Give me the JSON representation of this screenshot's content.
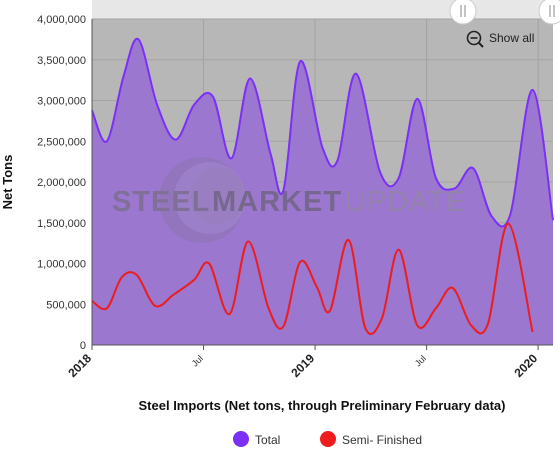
{
  "chart_data": {
    "type": "area",
    "ylabel": "Net Tons",
    "xlabel": "Steel Imports (Net tons, through Preliminary February data)",
    "y_ticks": [
      "0",
      "500,000",
      "1,000,000",
      "1,500,000",
      "2,000,000",
      "2,500,000",
      "3,000,000",
      "3,500,000",
      "4,000,000"
    ],
    "ylim": [
      0,
      4000000
    ],
    "x_ticks": [
      {
        "label": "2018",
        "month": 0,
        "major": true
      },
      {
        "label": "Jul",
        "month": 6,
        "major": false
      },
      {
        "label": "2019",
        "month": 12,
        "major": true
      },
      {
        "label": "Jul",
        "month": 18,
        "major": false
      },
      {
        "label": "2020",
        "month": 24,
        "major": true
      }
    ],
    "grid": true,
    "legend_position": "bottom-center",
    "series": [
      {
        "name": "Total",
        "color": "#7b2ff7",
        "fill": "#9b77cf",
        "points": [
          [
            0,
            2880000
          ],
          [
            0.8,
            2500000
          ],
          [
            1.7,
            3300000
          ],
          [
            2.5,
            3750000
          ],
          [
            3.5,
            2950000
          ],
          [
            4.5,
            2520000
          ],
          [
            5.5,
            2950000
          ],
          [
            6.5,
            3050000
          ],
          [
            7.5,
            2290000
          ],
          [
            8.5,
            3270000
          ],
          [
            9.6,
            2350000
          ],
          [
            10.3,
            1900000
          ],
          [
            11.2,
            3480000
          ],
          [
            12.4,
            2420000
          ],
          [
            13.2,
            2260000
          ],
          [
            14.2,
            3330000
          ],
          [
            15.5,
            2120000
          ],
          [
            16.5,
            2050000
          ],
          [
            17.5,
            3020000
          ],
          [
            18.5,
            2050000
          ],
          [
            19.5,
            1920000
          ],
          [
            20.5,
            2170000
          ],
          [
            21.5,
            1580000
          ],
          [
            22.5,
            1600000
          ],
          [
            23.7,
            3130000
          ],
          [
            24.8,
            1530000
          ]
        ]
      },
      {
        "name": "Semi- Finished",
        "color": "#ee1c1c",
        "points": [
          [
            0,
            540000
          ],
          [
            0.8,
            450000
          ],
          [
            1.6,
            830000
          ],
          [
            2.4,
            860000
          ],
          [
            3.4,
            480000
          ],
          [
            4.4,
            620000
          ],
          [
            5.5,
            800000
          ],
          [
            6.3,
            1000000
          ],
          [
            7.4,
            380000
          ],
          [
            8.4,
            1270000
          ],
          [
            9.5,
            450000
          ],
          [
            10.3,
            230000
          ],
          [
            11.2,
            1020000
          ],
          [
            12.1,
            710000
          ],
          [
            12.8,
            420000
          ],
          [
            13.8,
            1290000
          ],
          [
            14.7,
            210000
          ],
          [
            15.6,
            330000
          ],
          [
            16.5,
            1170000
          ],
          [
            17.5,
            240000
          ],
          [
            18.5,
            450000
          ],
          [
            19.4,
            700000
          ],
          [
            20.4,
            240000
          ],
          [
            21.3,
            260000
          ],
          [
            22.4,
            1490000
          ],
          [
            23.7,
            160000
          ]
        ]
      }
    ]
  },
  "ui": {
    "show_all_label": "Show all",
    "watermark_word1": "STEEL",
    "watermark_word2": "MARKET",
    "watermark_word3": "UPDATE"
  }
}
